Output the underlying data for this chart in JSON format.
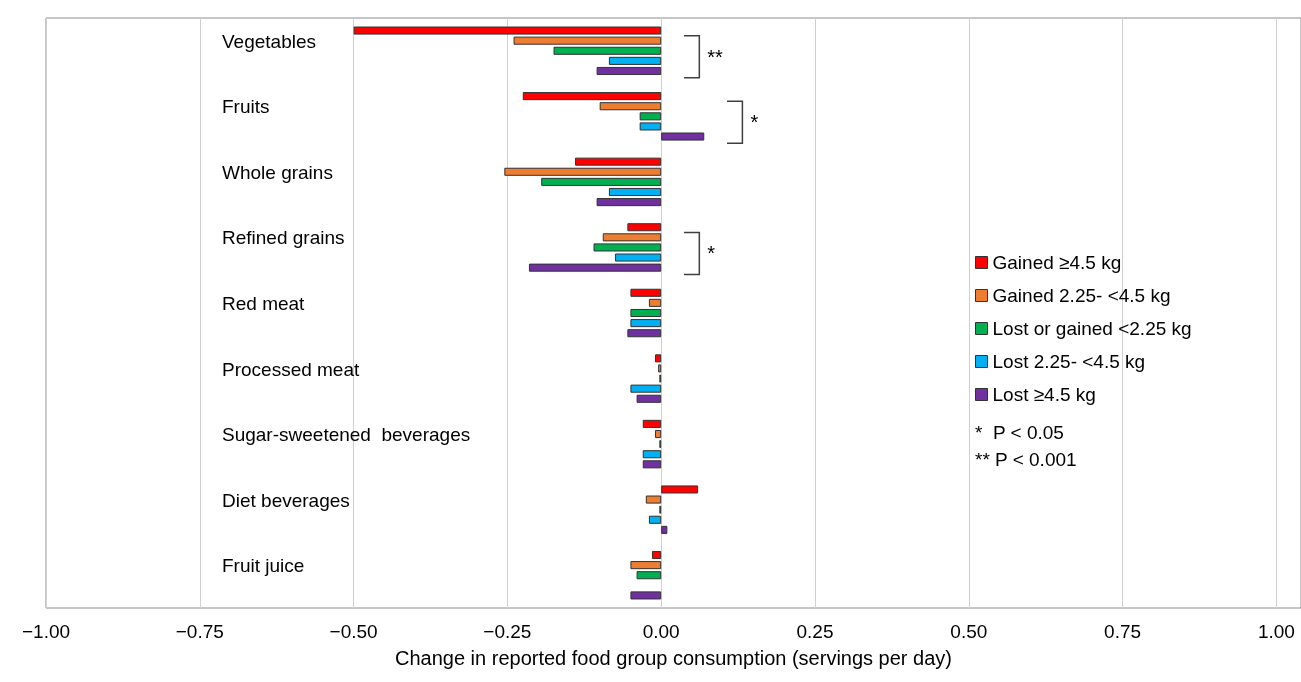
{
  "chart_data": {
    "type": "bar",
    "orientation": "horizontal",
    "xlabel": "Change in reported food group consumption (servings per day)",
    "categories": [
      "Vegetables",
      "Fruits",
      "Whole grains",
      "Refined grains",
      "Red meat",
      "Processed meat",
      "Sugar-sweetened  beverages",
      "Diet beverages",
      "Fruit juice"
    ],
    "series": [
      {
        "name": "Gained ≥4.5 kg",
        "color": "#ff0000",
        "values": [
          -0.5,
          -0.225,
          -0.14,
          -0.055,
          -0.05,
          -0.01,
          -0.03,
          0.06,
          -0.015
        ]
      },
      {
        "name": "Gained 2.25- <4.5 kg",
        "color": "#ed7d31",
        "values": [
          -0.24,
          -0.1,
          -0.255,
          -0.095,
          -0.02,
          -0.005,
          -0.01,
          -0.025,
          -0.05
        ]
      },
      {
        "name": "Lost or gained <2.25 kg",
        "color": "#00b050",
        "values": [
          -0.175,
          -0.035,
          -0.195,
          -0.11,
          -0.05,
          -0.003,
          -0.003,
          -0.003,
          -0.04
        ]
      },
      {
        "name": "Lost 2.25- <4.5 kg",
        "color": "#00b0f0",
        "values": [
          -0.085,
          -0.035,
          -0.085,
          -0.075,
          -0.05,
          -0.05,
          -0.03,
          -0.02,
          null
        ]
      },
      {
        "name": "Lost ≥4.5 kg",
        "color": "#7030a0",
        "values": [
          -0.105,
          0.07,
          -0.105,
          -0.215,
          -0.055,
          -0.04,
          -0.03,
          0.01,
          -0.05
        ]
      }
    ],
    "xlim": [
      -1,
      1.04
    ],
    "xticks": [
      {
        "value": -1,
        "label": "−1.00"
      },
      {
        "value": -0.75,
        "label": "−0.75"
      },
      {
        "value": -0.5,
        "label": "−0.50"
      },
      {
        "value": -0.25,
        "label": "−0.25"
      },
      {
        "value": 0,
        "label": "0.00"
      },
      {
        "value": 0.25,
        "label": "0.25"
      },
      {
        "value": 0.5,
        "label": "0.50"
      },
      {
        "value": 0.75,
        "label": "0.75"
      },
      {
        "value": 1,
        "label": "1.00"
      }
    ],
    "grid": "x",
    "legend": "right",
    "annotations": [
      "**",
      "*",
      "*",
      "*  P < 0.05",
      "** P < 0.001"
    ]
  }
}
